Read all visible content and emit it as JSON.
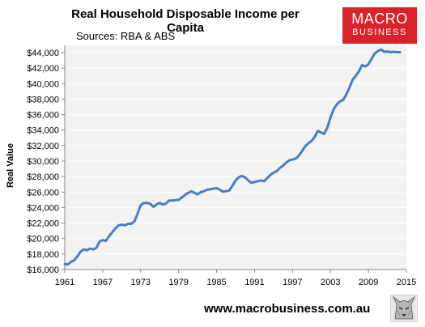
{
  "header": {
    "title": "Real Household Disposable Income per Capita",
    "subtitle": "Sources: RBA & ABS"
  },
  "logo": {
    "line1": "MACRO",
    "line2": "BUSINESS",
    "color": "#d8232a"
  },
  "footer": {
    "url": "www.macrobusiness.com.au",
    "icon": "wolf-icon"
  },
  "colors": {
    "line": "#4a7ebb",
    "plot_bg": "#f2f2f2",
    "grid": "#ffffff"
  },
  "chart_data": {
    "type": "line",
    "title": "Real Household Disposable Income per Capita",
    "subtitle": "Sources: RBA & ABS",
    "xlabel": "",
    "ylabel": "Real Value",
    "xlim": [
      1961,
      2015
    ],
    "ylim": [
      16000,
      44000
    ],
    "grid": true,
    "legend": "none",
    "x_ticks": [
      "1961",
      "1967",
      "1973",
      "1979",
      "1985",
      "1991",
      "1997",
      "2003",
      "2009",
      "2015"
    ],
    "y_ticks": [
      "$16,000",
      "$18,000",
      "$20,000",
      "$22,000",
      "$24,000",
      "$26,000",
      "$28,000",
      "$30,000",
      "$32,000",
      "$34,000",
      "$36,000",
      "$38,000",
      "$40,000",
      "$42,000",
      "$44,000"
    ],
    "series": [
      {
        "x": [
          1961.0,
          1961.5,
          1962.0,
          1962.5,
          1963.0,
          1963.5,
          1964.0,
          1964.5,
          1965.0,
          1965.5,
          1966.0,
          1966.5,
          1967.0,
          1967.5,
          1968.0,
          1968.5,
          1969.0,
          1969.5,
          1970.0,
          1970.5,
          1971.0,
          1971.5,
          1972.0,
          1972.5,
          1973.0,
          1973.5,
          1974.0,
          1974.5,
          1975.0,
          1975.5,
          1976.0,
          1976.5,
          1977.0,
          1977.5,
          1978.0,
          1978.5,
          1979.0,
          1979.5,
          1980.0,
          1980.5,
          1981.0,
          1981.5,
          1982.0,
          1982.5,
          1983.0,
          1983.5,
          1984.0,
          1984.5,
          1985.0,
          1985.5,
          1986.0,
          1986.5,
          1987.0,
          1987.5,
          1988.0,
          1988.5,
          1989.0,
          1989.5,
          1990.0,
          1990.5,
          1991.0,
          1991.5,
          1992.0,
          1992.5,
          1993.0,
          1993.5,
          1994.0,
          1994.5,
          1995.0,
          1995.5,
          1996.0,
          1996.5,
          1997.0,
          1997.5,
          1998.0,
          1998.5,
          1999.0,
          1999.5,
          2000.0,
          2000.5,
          2001.0,
          2001.5,
          2002.0,
          2002.5,
          2003.0,
          2003.5,
          2004.0,
          2004.5,
          2005.0,
          2005.5,
          2006.0,
          2006.5,
          2007.0,
          2007.5,
          2008.0,
          2008.5,
          2009.0,
          2009.5,
          2010.0,
          2010.5,
          2011.0,
          2011.5,
          2012.0,
          2012.5,
          2013.0,
          2013.5,
          2014.0
        ],
        "y": [
          16700,
          16650,
          17000,
          17200,
          17700,
          18300,
          18600,
          18500,
          18700,
          18600,
          18800,
          19600,
          19800,
          19700,
          20300,
          20800,
          21300,
          21700,
          21800,
          21700,
          21900,
          21900,
          22200,
          23200,
          24300,
          24600,
          24600,
          24500,
          24100,
          24400,
          24600,
          24400,
          24500,
          24900,
          24900,
          24950,
          25000,
          25300,
          25600,
          25900,
          26100,
          25900,
          25700,
          26000,
          26100,
          26300,
          26350,
          26450,
          26500,
          26300,
          26050,
          26100,
          26200,
          26800,
          27500,
          27900,
          28100,
          27900,
          27500,
          27200,
          27300,
          27400,
          27500,
          27400,
          27800,
          28200,
          28500,
          28700,
          29100,
          29400,
          29800,
          30100,
          30200,
          30300,
          30700,
          31300,
          31900,
          32300,
          32600,
          33100,
          33900,
          33700,
          33500,
          34300,
          35600,
          36700,
          37300,
          37700,
          37900,
          38600,
          39500,
          40500,
          41000,
          41600,
          42400,
          42200,
          42500,
          43200,
          43900,
          44200,
          44400,
          44100,
          44150,
          44050,
          44100,
          44050,
          44050
        ]
      }
    ]
  }
}
